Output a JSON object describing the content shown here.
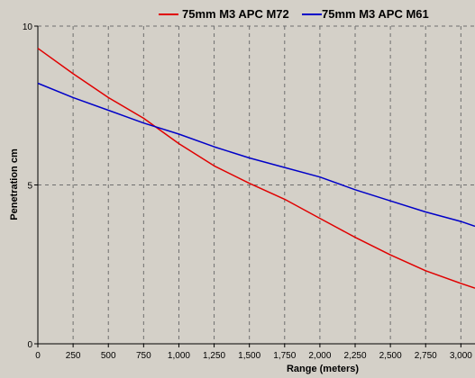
{
  "chart_data": {
    "type": "line",
    "xlabel": "Range (meters)",
    "ylabel": "Penetration cm",
    "xlim": [
      0,
      3100
    ],
    "ylim": [
      0,
      10
    ],
    "grid": true,
    "legend_position": "top",
    "x_ticks": [
      0,
      250,
      500,
      750,
      1000,
      1250,
      1500,
      1750,
      2000,
      2250,
      2500,
      2750,
      3000
    ],
    "x_tick_labels": [
      "0",
      "250",
      "500",
      "750",
      "1,000",
      "1,250",
      "1,500",
      "1,750",
      "2,000",
      "2,250",
      "2,500",
      "2,750",
      "3,000"
    ],
    "y_ticks": [
      0,
      5,
      10
    ],
    "y_tick_labels": [
      "0",
      "5",
      "10"
    ],
    "x": [
      0,
      250,
      500,
      750,
      1000,
      1250,
      1500,
      1750,
      2000,
      2250,
      2500,
      2750,
      3000,
      3100
    ],
    "series": [
      {
        "name": "75mm M3 APC M72",
        "color": "#e00000",
        "values": [
          9.3,
          8.5,
          7.75,
          7.1,
          6.3,
          5.6,
          5.05,
          4.55,
          3.95,
          3.35,
          2.8,
          2.3,
          1.9,
          1.75
        ]
      },
      {
        "name": "75mm M3 APC M61",
        "color": "#0000c8",
        "values": [
          8.2,
          7.75,
          7.35,
          6.95,
          6.6,
          6.2,
          5.85,
          5.55,
          5.25,
          4.85,
          4.5,
          4.15,
          3.85,
          3.7
        ]
      }
    ]
  }
}
